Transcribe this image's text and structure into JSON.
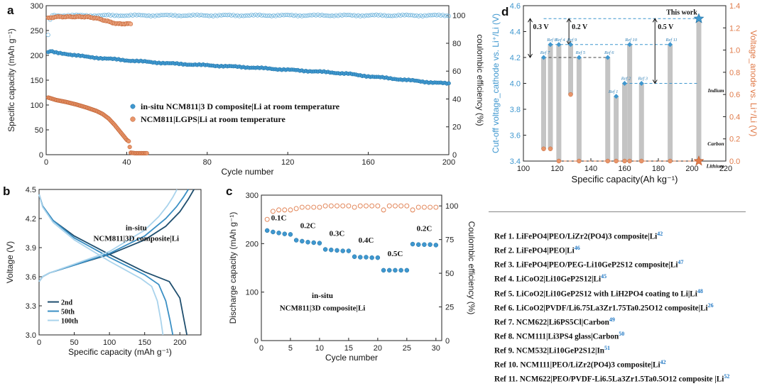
{
  "colors": {
    "blue": "#3f97cf",
    "blue_dark": "#1c6e9e",
    "orange": "#e07b4a",
    "orange_fill": "#e8956a",
    "grey_bar": "#c4c4c4"
  },
  "panel_a": {
    "letter": "a",
    "xlabel": "Cycle number",
    "ylabel": "Specific capacity (mAh g⁻¹)",
    "y2label": "coulombic efficiency (%)",
    "legend": [
      "in-situ NCM811|3 D composite|Li at room temperature",
      "NCM811|LGPS|Li at room temperature"
    ]
  },
  "panel_b": {
    "letter": "b",
    "xlabel": "Specific capacity (mAh g⁻¹)",
    "ylabel": "Voltage (V)",
    "annotation": [
      "in-situ",
      "NCM811|3D composite|Li"
    ],
    "legend": [
      "2nd",
      "50th",
      "100th"
    ]
  },
  "panel_c": {
    "letter": "c",
    "xlabel": "Cycle number",
    "ylabel": "Discharge capacity (mAh g⁻¹)",
    "y2label": "Coulombic efficiency (%)",
    "annotation": [
      "in-situ",
      "NCM811|3D composite|Li"
    ],
    "rate_labels": [
      "0.1C",
      "0.2C",
      "0.3C",
      "0.4C",
      "0.5C",
      "0.2C"
    ]
  },
  "panel_d": {
    "letter": "d",
    "xlabel": "Specific capacity(Ah kg⁻¹)",
    "ylabel": "Cut-off voltage_cathode vs. Li⁺/Li (V)",
    "y2label": "Voltage_anode vs. Li⁺/Li (V)",
    "this_work": "This work",
    "anode_labels": [
      "Indium",
      "Carbon",
      "Lithium"
    ],
    "gap_labels": [
      "0.3 V",
      "0.2 V",
      "0.5 V"
    ]
  },
  "references": [
    {
      "text": "Ref 1. LiFePO4|PEO/LiZr2(PO4)3 composite|Li",
      "cite": "42"
    },
    {
      "text": "Ref 2. LiFePO4|PEO|Li",
      "cite": "46"
    },
    {
      "text": "Ref 3. LiFePO4|PEO/PEG-Li10GeP2S12 composite|Li",
      "cite": "47"
    },
    {
      "text": "Ref 4. LiCoO2|Li10GeP2S12|Li",
      "cite": "45"
    },
    {
      "text": "Ref 5. LiCoO2|Li10GeP2S12 with LiH2PO4 coating to Li|Li",
      "cite": "48"
    },
    {
      "text": "Ref 6. LiCoO2|PVDF/Li6.75La3Zr1.75Ta0.25O12 composite|Li",
      "cite": "26"
    },
    {
      "text": "Ref 7. NCM622|Li6PS5Cl|Carbon",
      "cite": "49"
    },
    {
      "text": "Ref 8. NCM111|Li3PS4 glass|Carbon",
      "cite": "50"
    },
    {
      "text": "Ref 9. NCM532|Li10GeP2S12|In",
      "cite": "51"
    },
    {
      "text": "Ref 10. NCM111|PEO/LiZr2(PO4)3 composite|Li",
      "cite": "42"
    },
    {
      "text": "Ref 11. NCM622|PEO/PVDF-Li6.5La3Zr1.5Ta0.5O12 composite |Li",
      "cite": "52"
    }
  ],
  "chart_data": [
    {
      "panel": "a",
      "type": "scatter",
      "xlabel": "Cycle number",
      "ylabel": "Specific capacity (mAh g⁻¹)",
      "y2label": "coulombic efficiency (%)",
      "xlim": [
        0,
        200
      ],
      "ylim": [
        0,
        300
      ],
      "y2lim": [
        0,
        107
      ],
      "xticks": [
        0,
        40,
        80,
        120,
        160,
        200
      ],
      "yticks": [
        0,
        50,
        100,
        150,
        200,
        250,
        300
      ],
      "y2ticks": [
        0,
        20,
        40,
        60,
        80,
        100
      ],
      "series": [
        {
          "name": "in-situ NCM811|3 D composite|Li at room temperature",
          "axis": "left",
          "marker": "filled",
          "color": "#3f97cf",
          "x": [
            1,
            2,
            5,
            10,
            20,
            40,
            60,
            80,
            100,
            120,
            140,
            150,
            155,
            160,
            170,
            180,
            190,
            200
          ],
          "y": [
            206,
            208,
            205,
            203,
            197,
            190,
            184,
            180,
            176,
            171,
            166,
            163,
            160,
            158,
            154,
            150,
            146,
            143
          ]
        },
        {
          "name": "NCM811|LGPS|Li at room temperature",
          "axis": "left",
          "marker": "filled",
          "color": "#e07b4a",
          "x": [
            1,
            5,
            10,
            15,
            20,
            25,
            28,
            31,
            34,
            37,
            40,
            41,
            42,
            44,
            46,
            48,
            50
          ],
          "y": [
            115,
            110,
            106,
            101,
            95,
            88,
            82,
            73,
            60,
            45,
            30,
            27,
            4,
            3,
            3,
            3,
            3
          ]
        },
        {
          "name": "",
          "axis": "right",
          "marker": "hollow",
          "color": "#3f97cf",
          "x": [
            1,
            2,
            3,
            10,
            50,
            100,
            150,
            200
          ],
          "y": [
            86,
            97,
            100,
            100,
            100,
            100,
            100,
            100
          ]
        },
        {
          "name": "",
          "axis": "right",
          "marker": "hollow",
          "color": "#e07b4a",
          "x": [
            1,
            5,
            10,
            20,
            25,
            30,
            35,
            40,
            42
          ],
          "y": [
            98,
            99,
            99,
            99,
            98,
            96,
            94,
            94,
            94
          ]
        }
      ],
      "legend_position": "center-left"
    },
    {
      "panel": "b",
      "type": "line",
      "xlabel": "Specific capacity (mAh g⁻¹)",
      "ylabel": "Voltage (V)",
      "xlim": [
        0,
        230
      ],
      "ylim": [
        3.0,
        4.5
      ],
      "xticks": [
        0,
        50,
        100,
        150,
        200
      ],
      "yticks": [
        3.0,
        3.3,
        3.6,
        3.9,
        4.2,
        4.5
      ],
      "series": [
        {
          "name": "2nd",
          "color": "#1f4e6e",
          "charge_x": [
            0,
            5,
            15,
            50,
            100,
            150,
            180,
            200,
            212,
            220
          ],
          "charge_y": [
            3.55,
            3.6,
            3.64,
            3.72,
            3.83,
            3.98,
            4.12,
            4.27,
            4.4,
            4.5
          ],
          "discharge_x": [
            0,
            5,
            20,
            50,
            100,
            150,
            185,
            200,
            206,
            210
          ],
          "discharge_y": [
            4.45,
            4.33,
            4.18,
            4.02,
            3.83,
            3.65,
            3.55,
            3.38,
            3.15,
            3.0
          ]
        },
        {
          "name": "50th",
          "color": "#3a8fc4",
          "charge_x": [
            0,
            5,
            15,
            50,
            100,
            150,
            180,
            195,
            205,
            212
          ],
          "charge_y": [
            3.55,
            3.6,
            3.64,
            3.72,
            3.84,
            4.02,
            4.2,
            4.32,
            4.42,
            4.5
          ],
          "discharge_x": [
            0,
            5,
            20,
            50,
            100,
            150,
            170,
            180,
            186,
            190
          ],
          "discharge_y": [
            4.45,
            4.33,
            4.18,
            4.0,
            3.8,
            3.62,
            3.52,
            3.35,
            3.15,
            3.0
          ]
        },
        {
          "name": "100th",
          "color": "#a9d3ec",
          "charge_x": [
            0,
            5,
            15,
            50,
            100,
            150,
            170,
            182,
            190,
            196
          ],
          "charge_y": [
            3.55,
            3.6,
            3.64,
            3.73,
            3.86,
            4.08,
            4.22,
            4.33,
            4.42,
            4.5
          ],
          "discharge_x": [
            0,
            5,
            20,
            50,
            100,
            145,
            160,
            168,
            173,
            176
          ],
          "discharge_y": [
            4.45,
            4.32,
            4.16,
            3.98,
            3.76,
            3.58,
            3.5,
            3.35,
            3.15,
            3.0
          ]
        }
      ],
      "legend_position": "bottom-left"
    },
    {
      "panel": "c",
      "type": "scatter",
      "xlabel": "Cycle number",
      "ylabel": "Discharge capacity (mAh g⁻¹)",
      "y2label": "Coulombic efficiency (%)",
      "xlim": [
        0,
        31
      ],
      "ylim": [
        0,
        300
      ],
      "y2lim": [
        0,
        108
      ],
      "xticks": [
        0,
        5,
        10,
        15,
        20,
        25,
        30
      ],
      "yticks": [
        0,
        100,
        200,
        300
      ],
      "y2ticks": [
        0,
        25,
        50,
        75,
        100
      ],
      "series": [
        {
          "name": "",
          "axis": "left",
          "marker": "filled",
          "color": "#3f97cf",
          "x": [
            1,
            2,
            3,
            4,
            5,
            6,
            7,
            8,
            9,
            10,
            11,
            12,
            13,
            14,
            15,
            16,
            17,
            18,
            19,
            20,
            21,
            22,
            23,
            24,
            25,
            26,
            27,
            28,
            29,
            30
          ],
          "y": [
            227,
            224,
            222,
            220,
            219,
            207,
            205,
            203,
            202,
            201,
            188,
            187,
            186,
            185,
            185,
            173,
            172,
            172,
            171,
            171,
            145,
            145,
            145,
            145,
            145,
            199,
            198,
            198,
            198,
            197
          ]
        },
        {
          "name": "",
          "axis": "right",
          "marker": "hollow",
          "color": "#e07b4a",
          "x": [
            1,
            2,
            3,
            4,
            5,
            6,
            7,
            8,
            9,
            10,
            11,
            12,
            13,
            14,
            15,
            16,
            17,
            18,
            19,
            20,
            21,
            22,
            23,
            24,
            25,
            26,
            27,
            28,
            29,
            30
          ],
          "y": [
            90,
            96,
            97,
            97,
            97,
            98,
            99,
            99,
            99,
            99,
            100,
            100,
            100,
            100,
            100,
            99,
            100,
            100,
            100,
            100,
            97,
            100,
            100,
            100,
            100,
            97,
            99,
            99,
            99,
            99
          ]
        }
      ]
    },
    {
      "panel": "d",
      "type": "bar",
      "xlabel": "Specific capacity(Ah kg⁻¹)",
      "ylabel": "Cut-off voltage_cathode vs. Li⁺/Li (V)",
      "y2label": "Voltage_anode vs. Li⁺/Li (V)",
      "xlim": [
        100,
        220
      ],
      "ylim": [
        3.4,
        4.6
      ],
      "y2lim": [
        0.0,
        1.4
      ],
      "xticks": [
        100,
        120,
        140,
        160,
        180,
        200,
        220
      ],
      "yticks": [
        3.4,
        3.6,
        3.8,
        4.0,
        4.2,
        4.4,
        4.6
      ],
      "y2ticks": [
        0.0,
        0.2,
        0.4,
        0.6,
        0.8,
        1.0,
        1.2,
        1.4
      ],
      "points": [
        {
          "label": "Ref 7",
          "x": 112,
          "cathode_v": 4.2,
          "anode_v": 0.11
        },
        {
          "label": "Ref 8",
          "x": 116,
          "cathode_v": 4.3,
          "anode_v": 0.11
        },
        {
          "label": "Ref 4",
          "x": 121,
          "cathode_v": 4.3,
          "anode_v": 0.0
        },
        {
          "label": "Ref 9",
          "x": 128,
          "cathode_v": 4.3,
          "anode_v": 0.6
        },
        {
          "label": "Ref 5",
          "x": 133,
          "cathode_v": 4.2,
          "anode_v": 0.0
        },
        {
          "label": "Ref 6",
          "x": 150,
          "cathode_v": 4.2,
          "anode_v": 0.0
        },
        {
          "label": "Ref 1",
          "x": 155,
          "cathode_v": 3.9,
          "anode_v": 0.0
        },
        {
          "label": "Ref 2",
          "x": 160,
          "cathode_v": 4.0,
          "anode_v": 0.0
        },
        {
          "label": "Ref 10",
          "x": 163,
          "cathode_v": 4.3,
          "anode_v": 0.0
        },
        {
          "label": "Ref 3",
          "x": 170,
          "cathode_v": 4.0,
          "anode_v": 0.0
        },
        {
          "label": "Ref 11",
          "x": 187,
          "cathode_v": 4.3,
          "anode_v": 0.0
        },
        {
          "label": "This work",
          "x": 204,
          "cathode_v": 4.5,
          "anode_v": 0.0
        }
      ],
      "gap_annotations": [
        {
          "label": "0.3 V",
          "from": 4.2,
          "to": 4.5
        },
        {
          "label": "0.2 V",
          "from": 4.3,
          "to": 4.5
        },
        {
          "label": "0.5 V",
          "from": 4.0,
          "to": 4.5
        }
      ]
    }
  ]
}
